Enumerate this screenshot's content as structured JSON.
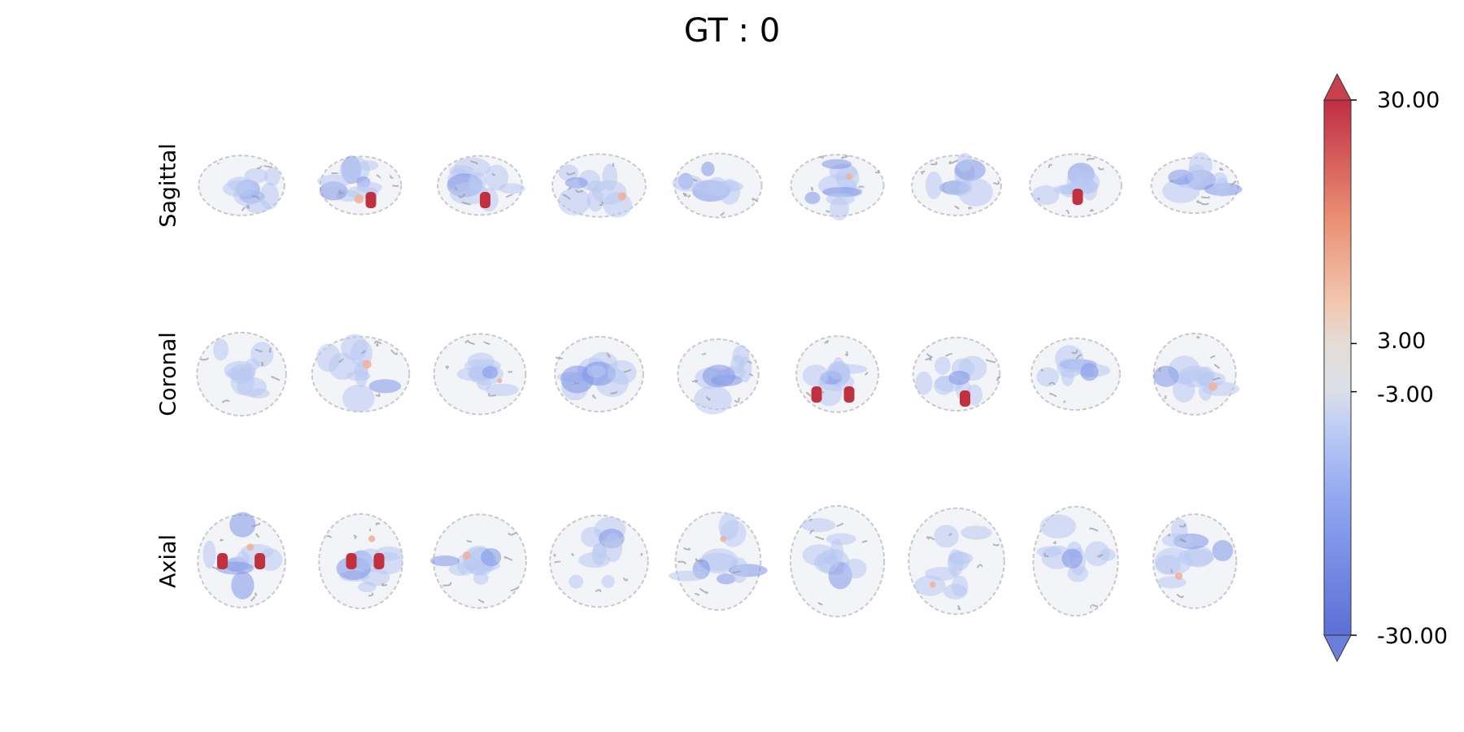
{
  "title": "GT : 0",
  "rows": [
    {
      "label": "Sagittal",
      "view": "sagittal",
      "slices": 9
    },
    {
      "label": "Coronal",
      "view": "coronal",
      "slices": 9
    },
    {
      "label": "Axial",
      "view": "axial",
      "slices": 9
    }
  ],
  "colorbar": {
    "min": -30,
    "max": 30,
    "threshold": 3,
    "extend": "both",
    "tick_labels": [
      "30.00",
      "3.00",
      "-3.00",
      "-30.00"
    ],
    "tick_values": [
      30,
      3,
      -3,
      -30
    ],
    "colormap": "coolwarm",
    "colors": {
      "low": "#3b4cc0",
      "mid": "#dddddd",
      "high": "#b40426"
    }
  }
}
